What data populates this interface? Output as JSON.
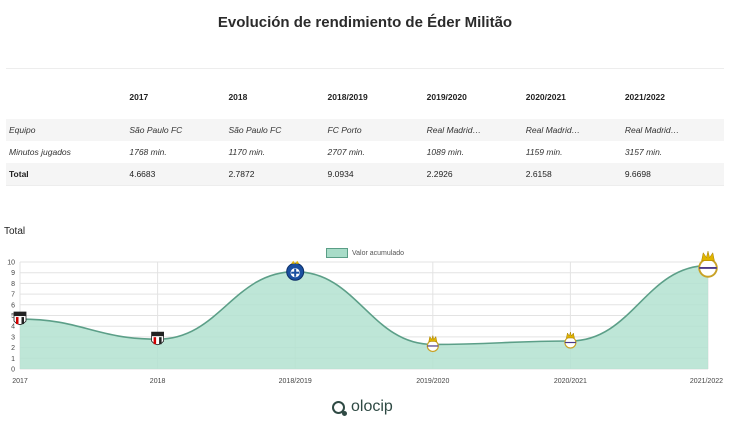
{
  "title": "Evolución de rendimiento de Éder Militão",
  "table": {
    "columns": [
      "",
      "2017",
      "2018",
      "2018/2019",
      "2019/2020",
      "2020/2021",
      "2021/2022"
    ],
    "rows": [
      {
        "label": "Equipo",
        "values": [
          "São Paulo FC",
          "São Paulo FC",
          "FC Porto",
          "Real Madrid…",
          "Real Madrid…",
          "Real Madrid…"
        ]
      },
      {
        "label": "Minutos jugados",
        "values": [
          "1768 min.",
          "1170 min.",
          "2707 min.",
          "1089 min.",
          "1159 min.",
          "3157 min."
        ]
      },
      {
        "label": "Total",
        "values": [
          "4.6683",
          "2.7872",
          "9.0934",
          "2.2926",
          "2.6158",
          "9.6698"
        ]
      }
    ]
  },
  "chart_label": "Total",
  "brand": "olocip",
  "colors": {
    "area_fill": "#b3e2d0",
    "line": "#5c9f88",
    "grid": "#e3e3e3"
  },
  "chart_data": {
    "type": "area",
    "categories": [
      "2017",
      "2018",
      "2018/2019",
      "2019/2020",
      "2020/2021",
      "2021/2022"
    ],
    "series": [
      {
        "name": "Valor acumulado",
        "values": [
          4.6683,
          2.7872,
          9.0934,
          2.2926,
          2.6158,
          9.6698
        ]
      }
    ],
    "ylim": [
      0,
      10
    ],
    "yticks": [
      "0",
      "1",
      "2",
      "3",
      "4",
      "5",
      "6",
      "7",
      "8",
      "9",
      "10"
    ],
    "grid": true,
    "legend": "top-center",
    "point_icons": [
      "sao-paulo-crest-icon",
      "sao-paulo-crest-icon",
      "porto-crest-icon",
      "real-madrid-crest-icon",
      "real-madrid-crest-icon",
      "real-madrid-crest-icon"
    ]
  }
}
